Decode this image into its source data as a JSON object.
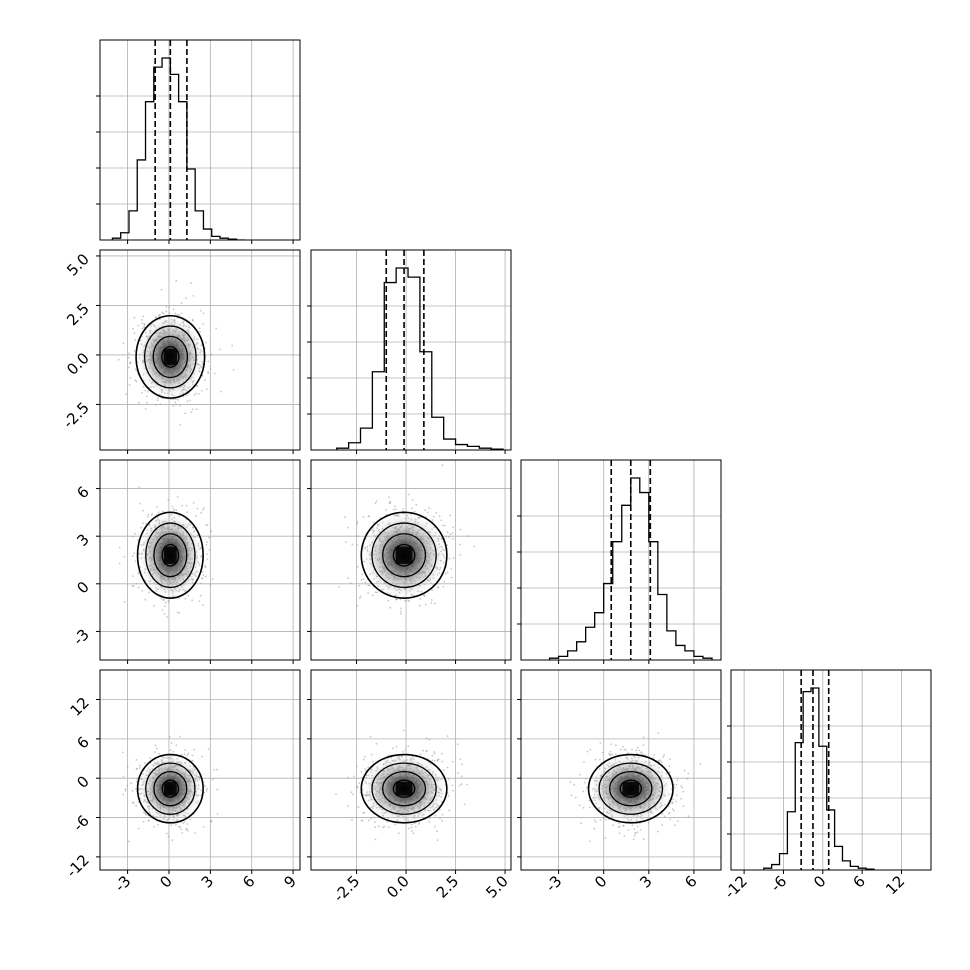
{
  "figure": {
    "type": "corner_plot",
    "grid": true,
    "quantile_line_style": "dashed",
    "colors": {
      "line": "#000000",
      "grid": "#b0b0b0",
      "axes": "#000000",
      "density_scale": [
        "#ffffff",
        "#000000"
      ]
    }
  },
  "chart_data": [
    {
      "type": "histogram",
      "row": 0,
      "col": 0,
      "variable": 0,
      "xlim": [
        -5,
        9.5
      ],
      "x_ticks": [
        -3,
        0,
        3,
        6,
        9
      ],
      "ylim": [
        0,
        1
      ],
      "bin_edges": [
        -4.1,
        -3.5,
        -2.9,
        -2.3,
        -1.7,
        -1.1,
        -0.5,
        0.1,
        0.7,
        1.3,
        1.9,
        2.5,
        3.1,
        3.7,
        4.3,
        4.9,
        5.5
      ],
      "counts": [
        0.01,
        0.04,
        0.16,
        0.44,
        0.76,
        0.95,
        1.0,
        0.91,
        0.76,
        0.39,
        0.16,
        0.06,
        0.02,
        0.01,
        0.005,
        0.0
      ],
      "quantiles": [
        -1.0,
        0.1,
        1.3
      ]
    },
    {
      "type": "scatter_density",
      "row": 1,
      "col": 0,
      "x_variable": 0,
      "y_variable": 1,
      "xlim": [
        -5,
        9.5
      ],
      "ylim": [
        -4.8,
        5.3
      ],
      "y_ticks": [
        -2.5,
        0.0,
        2.5,
        5.0
      ],
      "center": [
        0.1,
        -0.1
      ],
      "spread": [
        1.15,
        1.0
      ],
      "contour_sigmas": [
        0.5,
        1.0,
        1.5,
        2.0
      ]
    },
    {
      "type": "histogram",
      "row": 1,
      "col": 1,
      "variable": 1,
      "xlim": [
        -4.8,
        5.3
      ],
      "x_ticks": [
        -2.5,
        0.0,
        2.5,
        5.0
      ],
      "ylim": [
        0,
        1
      ],
      "bin_edges": [
        -3.5,
        -2.9,
        -2.3,
        -1.7,
        -1.1,
        -0.5,
        0.1,
        0.7,
        1.3,
        1.9,
        2.5,
        3.1,
        3.7,
        4.3,
        4.9
      ],
      "counts": [
        0.01,
        0.04,
        0.12,
        0.43,
        0.92,
        1.0,
        0.95,
        0.54,
        0.18,
        0.06,
        0.03,
        0.02,
        0.01,
        0.005
      ],
      "quantiles": [
        -1.0,
        -0.1,
        0.9
      ]
    },
    {
      "type": "scatter_density",
      "row": 2,
      "col": 0,
      "x_variable": 0,
      "y_variable": 2,
      "xlim": [
        -5,
        9.5
      ],
      "ylim": [
        -4.8,
        7.8
      ],
      "y_ticks": [
        -3,
        0,
        3,
        6
      ],
      "center": [
        0.1,
        1.8
      ],
      "spread": [
        1.1,
        1.3
      ],
      "contour_sigmas": [
        0.5,
        1.0,
        1.5,
        2.0
      ]
    },
    {
      "type": "scatter_density",
      "row": 2,
      "col": 1,
      "x_variable": 1,
      "y_variable": 2,
      "xlim": [
        -4.8,
        5.3
      ],
      "ylim": [
        -4.8,
        7.8
      ],
      "y_ticks": [
        -3,
        0,
        3,
        6
      ],
      "center": [
        -0.1,
        1.8
      ],
      "spread": [
        1.0,
        1.3
      ],
      "contour_sigmas": [
        0.5,
        1.0,
        1.5,
        2.0
      ]
    },
    {
      "type": "histogram",
      "row": 2,
      "col": 2,
      "variable": 2,
      "xlim": [
        -5.5,
        7.8
      ],
      "x_ticks": [
        -3,
        0,
        3,
        6
      ],
      "ylim": [
        0,
        1
      ],
      "bin_edges": [
        -3.6,
        -3.0,
        -2.4,
        -1.8,
        -1.2,
        -0.6,
        0.0,
        0.6,
        1.2,
        1.8,
        2.4,
        3.0,
        3.6,
        4.2,
        4.8,
        5.4,
        6.0,
        6.6,
        7.2
      ],
      "counts": [
        0.01,
        0.02,
        0.05,
        0.1,
        0.18,
        0.26,
        0.42,
        0.65,
        0.85,
        1.0,
        0.92,
        0.65,
        0.36,
        0.16,
        0.08,
        0.05,
        0.02,
        0.01
      ],
      "quantiles": [
        0.5,
        1.8,
        3.1
      ]
    },
    {
      "type": "scatter_density",
      "row": 3,
      "col": 0,
      "x_variable": 0,
      "y_variable": 3,
      "xlim": [
        -5,
        9.5
      ],
      "ylim": [
        -14,
        16.5
      ],
      "y_ticks": [
        -12,
        -6,
        0,
        6,
        12
      ],
      "center": [
        0.1,
        -1.6
      ],
      "spread": [
        1.1,
        2.5
      ],
      "contour_sigmas": [
        0.5,
        1.0,
        1.5,
        2.0
      ]
    },
    {
      "type": "scatter_density",
      "row": 3,
      "col": 1,
      "x_variable": 1,
      "y_variable": 3,
      "xlim": [
        -4.8,
        5.3
      ],
      "ylim": [
        -14,
        16.5
      ],
      "x_ticks": [
        -2.5,
        0.0,
        2.5,
        5.0
      ],
      "center": [
        -0.1,
        -1.6
      ],
      "spread": [
        1.0,
        2.5
      ],
      "contour_sigmas": [
        0.5,
        1.0,
        1.5,
        2.0
      ]
    },
    {
      "type": "scatter_density",
      "row": 3,
      "col": 2,
      "x_variable": 2,
      "y_variable": 3,
      "xlim": [
        -5.5,
        7.8
      ],
      "ylim": [
        -14,
        16.5
      ],
      "x_ticks": [
        -3,
        0,
        3,
        6
      ],
      "center": [
        1.8,
        -1.6
      ],
      "spread": [
        1.3,
        2.5
      ],
      "contour_sigmas": [
        0.5,
        1.0,
        1.5,
        2.0
      ]
    },
    {
      "type": "histogram",
      "row": 3,
      "col": 3,
      "variable": 3,
      "xlim": [
        -14,
        16.5
      ],
      "x_ticks": [
        -12,
        -6,
        0,
        6,
        12
      ],
      "ylim": [
        0,
        1
      ],
      "bin_edges": [
        -9.0,
        -7.8,
        -6.6,
        -5.4,
        -4.2,
        -3.0,
        -1.8,
        -0.6,
        0.6,
        1.8,
        3.0,
        4.2,
        5.4,
        6.6,
        7.8
      ],
      "counts": [
        0.01,
        0.03,
        0.09,
        0.32,
        0.7,
        0.98,
        1.0,
        0.68,
        0.33,
        0.13,
        0.05,
        0.02,
        0.01,
        0.005
      ],
      "quantiles": [
        -3.3,
        -1.5,
        0.9
      ]
    }
  ],
  "tick_labels": {
    "col0_x": [
      "-3",
      "0",
      "3",
      "6",
      "9"
    ],
    "col1_x": [
      "-2.5",
      "0.0",
      "2.5",
      "5.0"
    ],
    "col2_x": [
      "-3",
      "0",
      "3",
      "6"
    ],
    "col3_x": [
      "-12",
      "-6",
      "0",
      "6",
      "12"
    ],
    "row1_y": [
      "-2.5",
      "0.0",
      "2.5",
      "5.0"
    ],
    "row2_y": [
      "-3",
      "0",
      "3",
      "6"
    ],
    "row3_y": [
      "-12",
      "-6",
      "0",
      "6",
      "12"
    ]
  }
}
